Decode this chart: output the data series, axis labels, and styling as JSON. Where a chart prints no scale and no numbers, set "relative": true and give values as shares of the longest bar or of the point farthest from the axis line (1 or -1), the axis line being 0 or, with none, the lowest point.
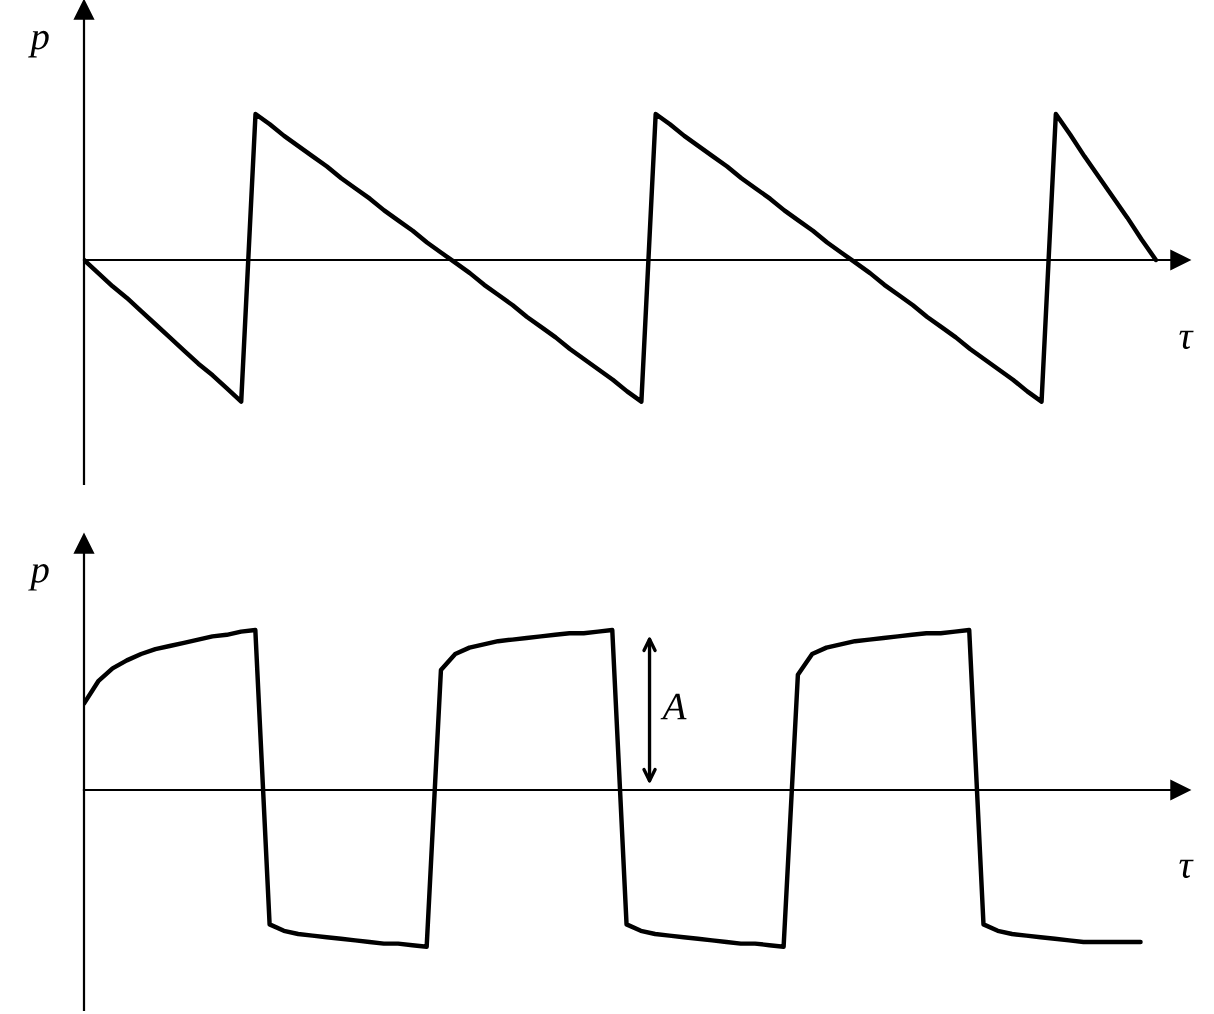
{
  "chart_data": [
    {
      "type": "line",
      "relative": true,
      "xlabel": "τ",
      "ylabel": "p",
      "color": "#000000",
      "categories": [
        null,
        null,
        null,
        null,
        null,
        null,
        null,
        null,
        null,
        null,
        null,
        null,
        null,
        null,
        null,
        null,
        null,
        null,
        null,
        null,
        null,
        null,
        null,
        null,
        null,
        null,
        null,
        null,
        null,
        null,
        null,
        null,
        null,
        null,
        null,
        null,
        null,
        null,
        null,
        null,
        null,
        null,
        null,
        null,
        null,
        null,
        null,
        null,
        null,
        null,
        null,
        null,
        null,
        null,
        null,
        null,
        null,
        null,
        null,
        null,
        null,
        null,
        null,
        null,
        null,
        null,
        null,
        null,
        null,
        null,
        null,
        null,
        null,
        null,
        null,
        null
      ],
      "values": [
        0,
        -0.09,
        -0.18,
        -0.26,
        -0.35,
        -0.44,
        -0.53,
        -0.62,
        -0.71,
        -0.79,
        -0.88,
        -0.97,
        1,
        0.93,
        0.85,
        0.78,
        0.71,
        0.64,
        0.56,
        0.49,
        0.42,
        0.34,
        0.27,
        0.2,
        0.12,
        0.05,
        -0.02,
        -0.09,
        -0.17,
        -0.24,
        -0.31,
        -0.39,
        -0.46,
        -0.53,
        -0.61,
        -0.68,
        -0.75,
        -0.82,
        -0.9,
        -0.97,
        1,
        0.93,
        0.85,
        0.78,
        0.71,
        0.64,
        0.56,
        0.49,
        0.42,
        0.34,
        0.27,
        0.2,
        0.12,
        0.05,
        -0.02,
        -0.09,
        -0.17,
        -0.24,
        -0.31,
        -0.39,
        -0.46,
        -0.53,
        -0.61,
        -0.68,
        -0.75,
        -0.82,
        -0.9,
        -0.97,
        1,
        0.86,
        0.71,
        0.57,
        0.43,
        0.29,
        0.14,
        0
      ]
    },
    {
      "type": "line",
      "relative": true,
      "xlabel": "τ",
      "ylabel": "p",
      "color": "#000000",
      "categories": [
        null,
        null,
        null,
        null,
        null,
        null,
        null,
        null,
        null,
        null,
        null,
        null,
        null,
        null,
        null,
        null,
        null,
        null,
        null,
        null,
        null,
        null,
        null,
        null,
        null,
        null,
        null,
        null,
        null,
        null,
        null,
        null,
        null,
        null,
        null,
        null,
        null,
        null,
        null,
        null,
        null,
        null,
        null,
        null,
        null,
        null,
        null,
        null,
        null,
        null,
        null,
        null,
        null,
        null,
        null,
        null,
        null,
        null,
        null,
        null,
        null,
        null,
        null,
        null,
        null,
        null,
        null,
        null,
        null,
        null,
        null,
        null,
        null,
        null,
        null
      ],
      "values": [
        0.54,
        0.68,
        0.76,
        0.81,
        0.85,
        0.88,
        0.9,
        0.92,
        0.94,
        0.96,
        0.97,
        0.99,
        1,
        -0.84,
        -0.88,
        -0.9,
        -0.91,
        -0.92,
        -0.93,
        -0.94,
        -0.95,
        -0.96,
        -0.96,
        -0.97,
        -0.98,
        0.75,
        0.85,
        0.89,
        0.91,
        0.93,
        0.94,
        0.95,
        0.96,
        0.97,
        0.98,
        0.98,
        0.99,
        1,
        -0.84,
        -0.88,
        -0.9,
        -0.91,
        -0.92,
        -0.93,
        -0.94,
        -0.95,
        -0.96,
        -0.96,
        -0.97,
        -0.98,
        0.72,
        0.85,
        0.89,
        0.91,
        0.93,
        0.94,
        0.95,
        0.96,
        0.97,
        0.98,
        0.98,
        0.99,
        1,
        -0.84,
        -0.88,
        -0.9,
        -0.91,
        -0.92,
        -0.93,
        -0.94,
        -0.95,
        -0.95,
        -0.95,
        -0.95,
        -0.95
      ],
      "annotations": [
        "A"
      ]
    }
  ]
}
